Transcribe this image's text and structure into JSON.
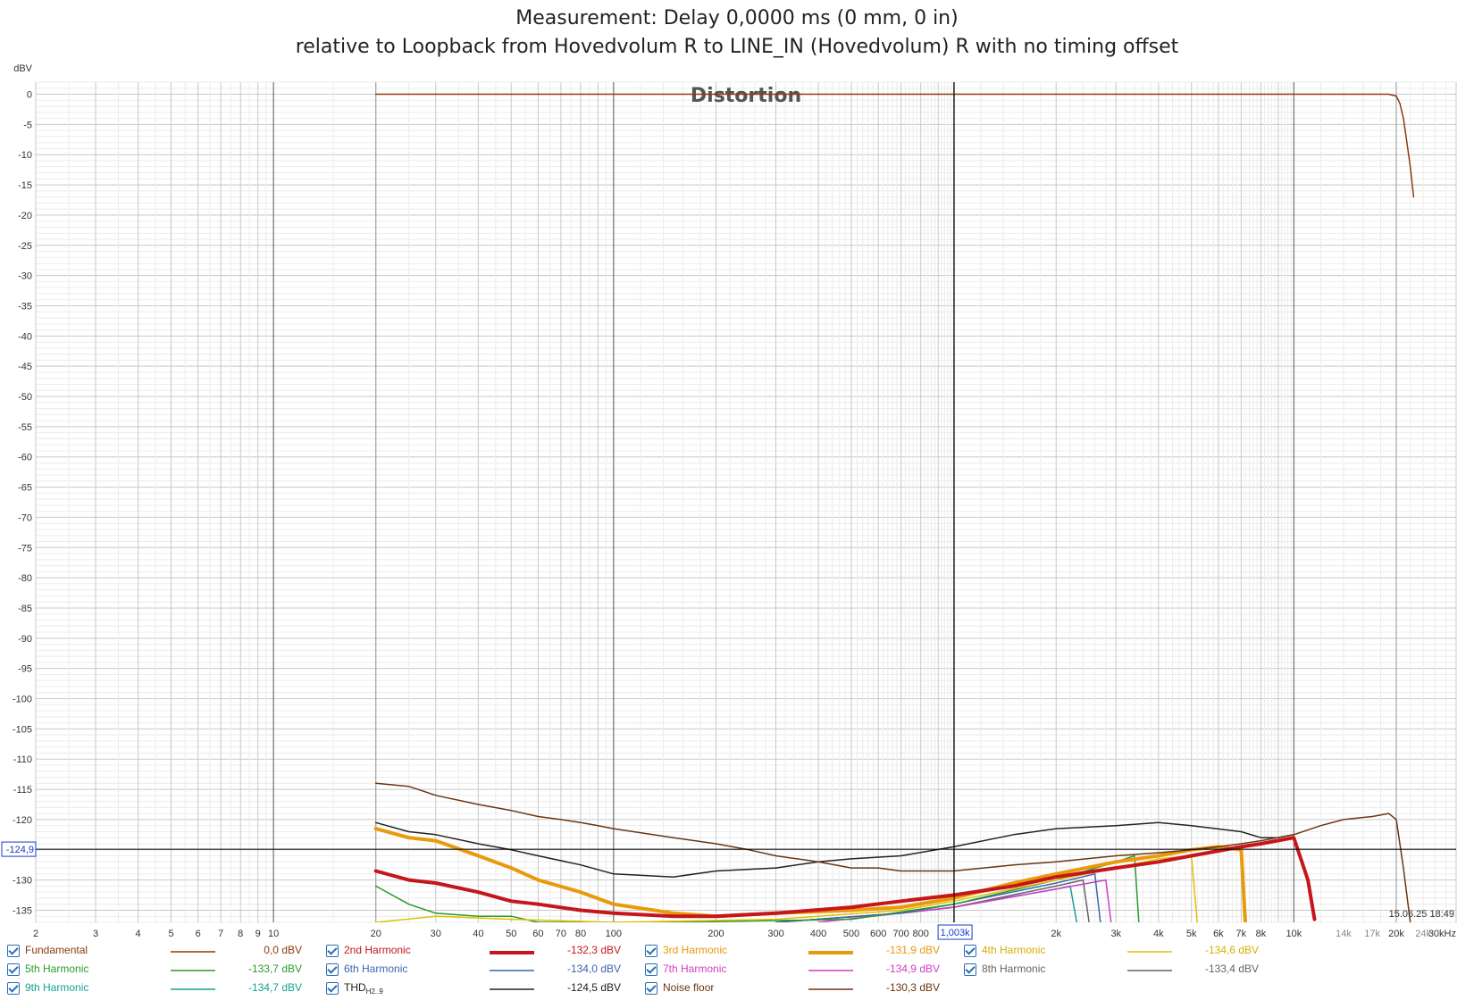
{
  "title_line1": "Measurement: Delay 0,0000 ms (0 mm, 0 in)",
  "title_line2": "relative to Loopback from Hovedvolum R to LINE_IN (Hovedvolum) R with no timing offset",
  "timestamp": "15.06.25 18:49",
  "cursor": {
    "y_label": "-124,9",
    "x_label": "1,003k",
    "y_value": -124.9,
    "x_value": 1003
  },
  "legend": [
    {
      "name": "Fundamental",
      "value": "0,0 dBV",
      "color": "#8b3a0e",
      "width": 1.5
    },
    {
      "name": "2nd Harmonic",
      "value": "-132,3 dBV",
      "color": "#c4161c",
      "width": 4
    },
    {
      "name": "3rd Harmonic",
      "value": "-131,9 dBV",
      "color": "#e89a0a",
      "width": 4
    },
    {
      "name": "4th Harmonic",
      "value": "-134,6 dBV",
      "color": "#e0c000",
      "width": 1.5
    },
    {
      "name": "5th Harmonic",
      "value": "-133,7 dBV",
      "color": "#2a9a2a",
      "width": 1.5
    },
    {
      "name": "6th Harmonic",
      "value": "-134,0 dBV",
      "color": "#3c64b4",
      "width": 1.5
    },
    {
      "name": "7th Harmonic",
      "value": "-134,9 dBV",
      "color": "#d23cc8",
      "width": 1.5
    },
    {
      "name": "8th Harmonic",
      "value": "-133,4 dBV",
      "color": "#646464",
      "width": 1.5
    },
    {
      "name": "9th Harmonic",
      "value": "-134,7 dBV",
      "color": "#14a096",
      "width": 1.5
    },
    {
      "name": "THD",
      "sub": "H2..9",
      "value": "-124,5 dBV",
      "color": "#222222",
      "width": 1.5
    },
    {
      "name": "Noise floor",
      "value": "-130,3 dBV",
      "color": "#6b3510",
      "width": 1.5
    }
  ],
  "chart_data": {
    "type": "line",
    "title": "Distortion",
    "ylabel": "dBV",
    "xlabel": "",
    "x_scale": "log",
    "xlim": [
      2,
      30000
    ],
    "ylim": [
      -137,
      2
    ],
    "grid": true,
    "y_ticks": [
      0,
      -5,
      -10,
      -15,
      -20,
      -25,
      -30,
      -35,
      -40,
      -45,
      -50,
      -55,
      -60,
      -65,
      -70,
      -75,
      -80,
      -85,
      -90,
      -95,
      -100,
      -105,
      -110,
      -115,
      -120,
      -125,
      -130,
      -135
    ],
    "x_ticks": [
      {
        "v": 2,
        "label": "2"
      },
      {
        "v": 3,
        "label": "3"
      },
      {
        "v": 4,
        "label": "4"
      },
      {
        "v": 5,
        "label": "5"
      },
      {
        "v": 6,
        "label": "6"
      },
      {
        "v": 7,
        "label": "7"
      },
      {
        "v": 8,
        "label": "8"
      },
      {
        "v": 9,
        "label": "9"
      },
      {
        "v": 10,
        "label": "10"
      },
      {
        "v": 20,
        "label": "20"
      },
      {
        "v": 30,
        "label": "30"
      },
      {
        "v": 40,
        "label": "40"
      },
      {
        "v": 50,
        "label": "50"
      },
      {
        "v": 60,
        "label": "60"
      },
      {
        "v": 70,
        "label": "70"
      },
      {
        "v": 80,
        "label": "80"
      },
      {
        "v": 100,
        "label": "100"
      },
      {
        "v": 200,
        "label": "200"
      },
      {
        "v": 300,
        "label": "300"
      },
      {
        "v": 400,
        "label": "400"
      },
      {
        "v": 500,
        "label": "500"
      },
      {
        "v": 600,
        "label": "600"
      },
      {
        "v": 700,
        "label": "700"
      },
      {
        "v": 800,
        "label": "800"
      },
      {
        "v": 2000,
        "label": "2k"
      },
      {
        "v": 3000,
        "label": "3k"
      },
      {
        "v": 4000,
        "label": "4k"
      },
      {
        "v": 5000,
        "label": "5k"
      },
      {
        "v": 6000,
        "label": "6k"
      },
      {
        "v": 7000,
        "label": "7k"
      },
      {
        "v": 8000,
        "label": "8k"
      },
      {
        "v": 10000,
        "label": "10k"
      },
      {
        "v": 14000,
        "label": "14k",
        "dim": true
      },
      {
        "v": 17000,
        "label": "17k",
        "dim": true
      },
      {
        "v": 20000,
        "label": "20k"
      },
      {
        "v": 24000,
        "label": "24k",
        "dim": true
      },
      {
        "v": 30000,
        "label": "30kHz"
      }
    ],
    "series": [
      {
        "name": "Fundamental",
        "color": "#8b3a0e",
        "width": 1.5,
        "x": [
          20,
          100,
          1000,
          10000,
          19000,
          20000,
          20500,
          21000,
          21500,
          22000,
          22500
        ],
        "y": [
          0,
          0,
          0,
          0,
          0,
          -0.3,
          -1.5,
          -4,
          -8,
          -12,
          -17
        ]
      },
      {
        "name": "Noise floor",
        "color": "#6b3510",
        "width": 1.5,
        "x": [
          20,
          25,
          30,
          40,
          50,
          60,
          70,
          80,
          90,
          100,
          150,
          200,
          250,
          300,
          400,
          500,
          600,
          700,
          800,
          1000,
          1500,
          2000,
          3000,
          4000,
          5000,
          6000,
          7000,
          8000,
          10000,
          12000,
          14000,
          17000,
          19000,
          20000,
          21000,
          22000
        ],
        "y": [
          -114,
          -114.5,
          -116,
          -117.5,
          -118.5,
          -119.5,
          -120,
          -120.5,
          -121,
          -121.5,
          -123,
          -124,
          -125,
          -126,
          -127,
          -128,
          -128,
          -128.5,
          -128.5,
          -128.5,
          -127.5,
          -127,
          -126,
          -125.5,
          -125,
          -124.5,
          -124,
          -123.5,
          -122.5,
          -121,
          -120,
          -119.5,
          -119,
          -120,
          -128,
          -137
        ]
      },
      {
        "name": "THD",
        "sub": "H2..9",
        "color": "#222222",
        "width": 1.5,
        "x": [
          20,
          25,
          30,
          40,
          50,
          60,
          80,
          100,
          150,
          200,
          300,
          400,
          500,
          700,
          1000,
          1500,
          2000,
          3000,
          4000,
          5000,
          7000,
          8000,
          9000,
          10000
        ],
        "y": [
          -120.5,
          -122,
          -122.5,
          -124,
          -125,
          -126,
          -127.5,
          -129,
          -129.5,
          -128.5,
          -128,
          -127,
          -126.5,
          -126,
          -124.5,
          -122.5,
          -121.5,
          -121,
          -120.5,
          -121,
          -122,
          -123,
          -123,
          -122.5
        ]
      },
      {
        "name": "3rd Harmonic",
        "color": "#e89a0a",
        "width": 4,
        "x": [
          20,
          25,
          30,
          40,
          50,
          60,
          80,
          100,
          150,
          200,
          300,
          500,
          700,
          1000,
          1500,
          2000,
          3000,
          4000,
          5000,
          6000,
          7000,
          7200
        ],
        "y": [
          -121.5,
          -123,
          -123.5,
          -126,
          -128,
          -130,
          -132,
          -134,
          -135.5,
          -136,
          -135.5,
          -135,
          -134.5,
          -133,
          -130.5,
          -129,
          -127,
          -126,
          -125,
          -124.5,
          -125,
          -137
        ]
      },
      {
        "name": "2nd Harmonic",
        "color": "#c4161c",
        "width": 4,
        "x": [
          20,
          25,
          30,
          40,
          50,
          60,
          80,
          100,
          150,
          200,
          300,
          500,
          700,
          1000,
          1500,
          2000,
          3000,
          4000,
          5000,
          7000,
          8000,
          10000,
          11000,
          11500
        ],
        "y": [
          -128.5,
          -130,
          -130.5,
          -132,
          -133.5,
          -134,
          -135,
          -135.5,
          -136,
          -136,
          -135.5,
          -134.5,
          -133.5,
          -132.5,
          -131,
          -129.5,
          -128,
          -127,
          -126,
          -124.5,
          -124,
          -123,
          -130,
          -136.5
        ]
      },
      {
        "name": "4th Harmonic",
        "color": "#e0c000",
        "width": 1.5,
        "x": [
          20,
          30,
          50,
          100,
          300,
          700,
          1000,
          2000,
          3000,
          4000,
          5000,
          5200
        ],
        "y": [
          -137,
          -136,
          -136.5,
          -137,
          -136.5,
          -135,
          -133.5,
          -130,
          -128,
          -126.5,
          -126,
          -137
        ]
      },
      {
        "name": "5th Harmonic",
        "color": "#2a9a2a",
        "width": 1.5,
        "x": [
          20,
          25,
          30,
          40,
          50,
          60,
          80,
          150,
          500,
          1000,
          2000,
          3000,
          3400,
          3500
        ],
        "y": [
          -131,
          -134,
          -135.5,
          -136,
          -136,
          -137,
          -137,
          -137,
          -136.5,
          -134,
          -130,
          -127,
          -126,
          -137
        ]
      },
      {
        "name": "6th Harmonic",
        "color": "#3c64b4",
        "width": 1.5,
        "x": [
          300,
          700,
          1000,
          2000,
          2600,
          2700
        ],
        "y": [
          -137,
          -135.5,
          -134,
          -130.5,
          -129,
          -137
        ]
      },
      {
        "name": "7th Harmonic",
        "color": "#d23cc8",
        "width": 1.5,
        "x": [
          400,
          700,
          1000,
          2000,
          2800,
          2900
        ],
        "y": [
          -137,
          -135.5,
          -134.5,
          -131.5,
          -130,
          -137
        ]
      },
      {
        "name": "8th Harmonic",
        "color": "#646464",
        "width": 1.5,
        "x": [
          300,
          700,
          1000,
          2000,
          2400,
          2500
        ],
        "y": [
          -137,
          -135.5,
          -134.5,
          -131,
          -130,
          -137
        ]
      },
      {
        "name": "9th Harmonic",
        "color": "#14a096",
        "width": 1.5,
        "x": [
          300,
          700,
          1000,
          2000,
          2200,
          2300
        ],
        "y": [
          -137,
          -135.5,
          -134.5,
          -131.5,
          -131,
          -137
        ]
      }
    ]
  }
}
